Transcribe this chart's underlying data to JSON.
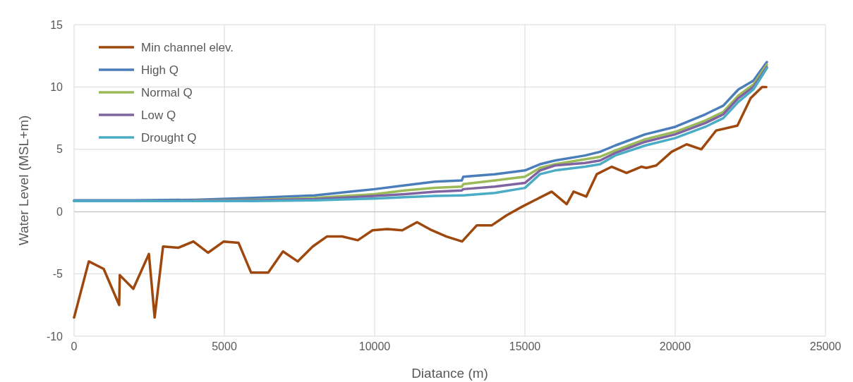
{
  "chart_data": {
    "type": "line",
    "xlabel": "Diatance (m)",
    "ylabel": "Water Level (MSL+m)",
    "xlim": [
      0,
      25000
    ],
    "xticks": [
      0,
      5000,
      10000,
      15000,
      20000,
      25000
    ],
    "ylim": [
      -10,
      15
    ],
    "yticks": [
      -10,
      -5,
      0,
      5,
      10,
      15
    ],
    "grid": true,
    "legend": "top left",
    "marker": "none",
    "line_style": "solid",
    "series": [
      {
        "name": "Min channel elev.",
        "color": "#9e480e",
        "x": [
          0,
          490,
          985,
          1500,
          1520,
          1970,
          2490,
          2680,
          2960,
          3470,
          3970,
          4460,
          4980,
          5470,
          5890,
          6460,
          6950,
          7440,
          7940,
          8410,
          8920,
          9440,
          9930,
          10420,
          10920,
          11410,
          11900,
          12390,
          12910,
          13400,
          13900,
          14390,
          14910,
          15400,
          15890,
          16390,
          16620,
          17040,
          17390,
          17890,
          18380,
          18870,
          19040,
          19370,
          19880,
          20380,
          20870,
          21360,
          22070,
          22510,
          22890,
          23030
        ],
        "values": [
          -8.5,
          -4.0,
          -4.6,
          -7.5,
          -5.1,
          -6.2,
          -3.4,
          -8.5,
          -2.8,
          -2.9,
          -2.4,
          -3.3,
          -2.4,
          -2.5,
          -4.9,
          -4.9,
          -3.2,
          -4.0,
          -2.8,
          -2.0,
          -2.0,
          -2.3,
          -1.5,
          -1.4,
          -1.5,
          -0.85,
          -1.5,
          -2.0,
          -2.4,
          -1.1,
          -1.1,
          -0.3,
          0.4,
          1.0,
          1.6,
          0.6,
          1.6,
          1.2,
          3.0,
          3.6,
          3.1,
          3.6,
          3.5,
          3.7,
          4.8,
          5.4,
          5.0,
          6.5,
          6.9,
          9.1,
          10.0,
          10.0
        ]
      },
      {
        "name": "High Q",
        "color": "#4a7ebb",
        "x": [
          0,
          2000,
          4000,
          6000,
          8000,
          10000,
          11000,
          12000,
          12900,
          12950,
          14000,
          15000,
          15500,
          16000,
          17000,
          17500,
          18000,
          19000,
          20000,
          21000,
          21600,
          22100,
          22600,
          23050
        ],
        "values": [
          0.9,
          0.9,
          0.95,
          1.1,
          1.3,
          1.8,
          2.1,
          2.4,
          2.5,
          2.8,
          3.0,
          3.3,
          3.8,
          4.1,
          4.5,
          4.8,
          5.3,
          6.2,
          6.8,
          7.8,
          8.5,
          9.8,
          10.5,
          12.0
        ]
      },
      {
        "name": "Normal Q",
        "color": "#9bbb59",
        "x": [
          4000,
          6000,
          8000,
          10000,
          11000,
          12000,
          12900,
          12950,
          14000,
          15000,
          15500,
          16000,
          17000,
          17500,
          18000,
          19000,
          20000,
          21000,
          21600,
          22100,
          22600,
          23050
        ],
        "values": [
          0.9,
          0.95,
          1.1,
          1.4,
          1.7,
          1.9,
          2.0,
          2.2,
          2.5,
          2.8,
          3.5,
          3.8,
          4.2,
          4.4,
          4.9,
          5.8,
          6.4,
          7.3,
          8.0,
          9.3,
          10.2,
          11.8
        ]
      },
      {
        "name": "Low Q",
        "color": "#8064a2",
        "x": [
          0,
          2000,
          4000,
          6000,
          8000,
          10000,
          11000,
          12000,
          12900,
          12950,
          14000,
          15000,
          15500,
          16000,
          17000,
          17500,
          18000,
          19000,
          20000,
          21000,
          21600,
          22100,
          22600,
          23050
        ],
        "values": [
          0.85,
          0.85,
          0.9,
          0.9,
          1.0,
          1.25,
          1.4,
          1.6,
          1.7,
          1.8,
          2.0,
          2.3,
          3.3,
          3.7,
          3.9,
          4.1,
          4.7,
          5.6,
          6.2,
          7.1,
          7.8,
          9.1,
          10.0,
          11.6
        ]
      },
      {
        "name": "Drought Q",
        "color": "#4bacc6",
        "x": [
          0,
          2000,
          4000,
          6000,
          8000,
          10000,
          11000,
          12000,
          12900,
          12950,
          14000,
          15000,
          15500,
          16000,
          17000,
          17500,
          18000,
          19000,
          20000,
          21000,
          21600,
          22100,
          22600,
          23050
        ],
        "values": [
          0.85,
          0.85,
          0.85,
          0.85,
          0.9,
          1.05,
          1.15,
          1.25,
          1.3,
          1.3,
          1.5,
          1.9,
          3.0,
          3.3,
          3.6,
          3.8,
          4.5,
          5.3,
          5.9,
          6.8,
          7.5,
          8.8,
          9.8,
          11.5
        ]
      }
    ]
  }
}
